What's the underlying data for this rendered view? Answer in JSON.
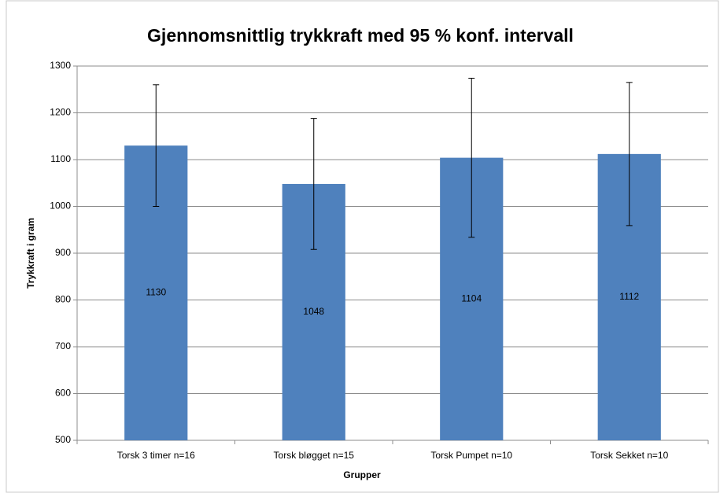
{
  "chart_data": {
    "type": "bar",
    "title": "Gjennomsnittlig trykkraft med 95 % konf. intervall",
    "xlabel": "Grupper",
    "ylabel": "Trykkraft i gram",
    "categories": [
      "Torsk 3 timer n=16",
      "Torsk bløgget n=15",
      "Torsk Pumpet n=10",
      "Torsk Sekket n=10"
    ],
    "values": [
      1130,
      1048,
      1104,
      1112
    ],
    "errors": [
      130,
      140,
      170,
      153
    ],
    "color": "#4f81bd",
    "ylim": [
      500,
      1300
    ],
    "yticks": [
      500,
      600,
      700,
      800,
      900,
      1000,
      1100,
      1200,
      1300
    ],
    "grid": true
  }
}
